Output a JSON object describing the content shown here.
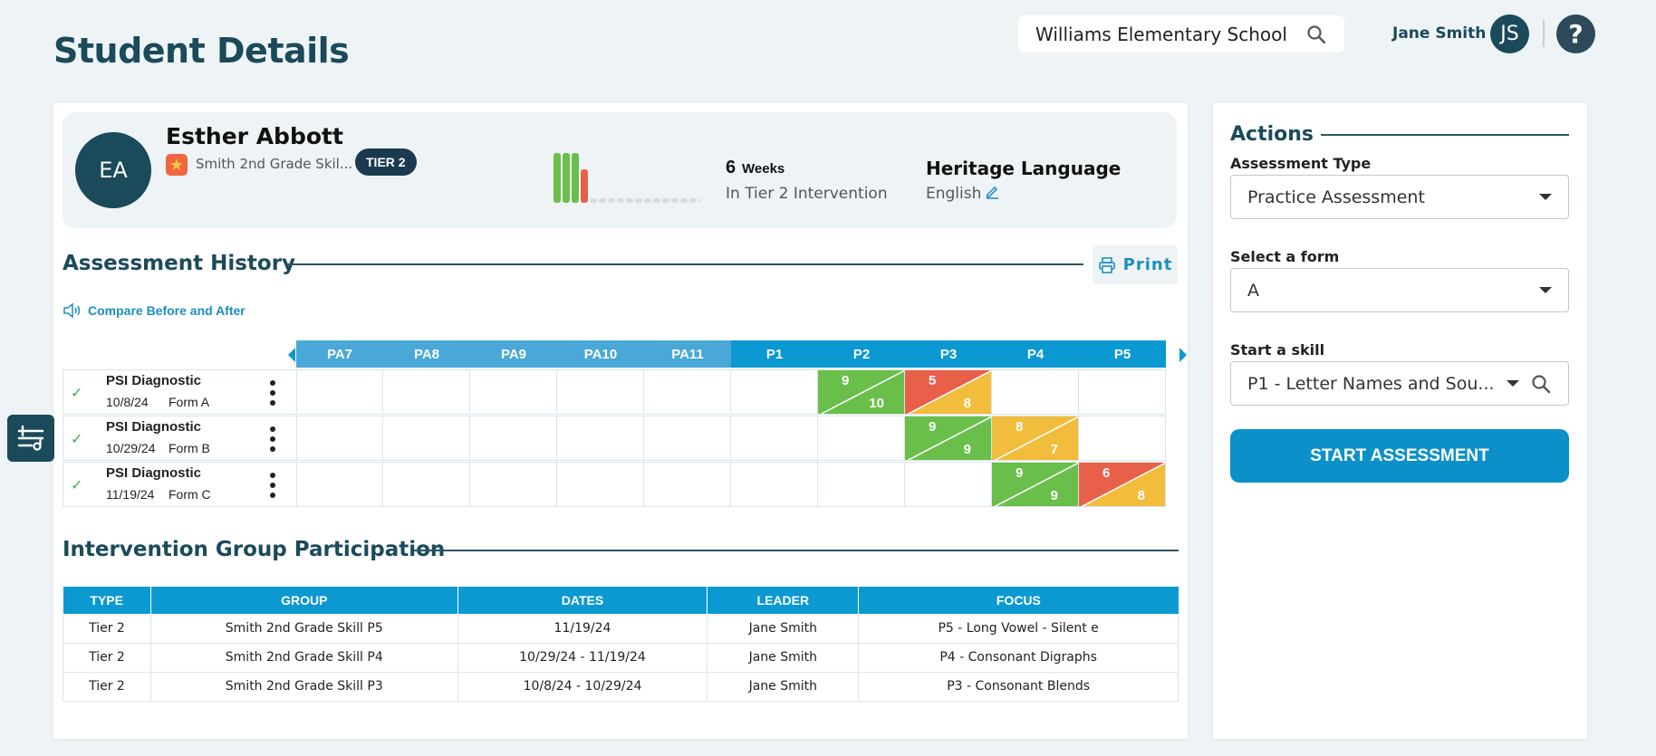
{
  "page": {
    "title": "Student Details"
  },
  "header": {
    "school": "Williams Elementary School",
    "user_name": "Jane Smith",
    "user_initials": "JS",
    "help": "?"
  },
  "student": {
    "initials": "EA",
    "name": "Esther Abbott",
    "group": "Smith 2nd Grade Skil...",
    "tier": "TIER 2",
    "weeks": {
      "count": "6",
      "unit": "Weeks",
      "desc": "In Tier 2 Intervention",
      "bars_green": 3,
      "bars_red": 1,
      "bars_empty": 13
    },
    "heritage": {
      "label": "Heritage Language",
      "value": "English"
    }
  },
  "assessment_history": {
    "title": "Assessment History",
    "print_label": "Print",
    "compare_label": "Compare Before and After",
    "columns": [
      "PA7",
      "PA8",
      "PA9",
      "PA10",
      "PA11",
      "P1",
      "P2",
      "P3",
      "P4",
      "P5"
    ],
    "rows": [
      {
        "name": "PSI Diagnostic",
        "date": "10/8/24",
        "form": "Form A",
        "cells": [
          null,
          null,
          null,
          null,
          null,
          null,
          {
            "top": "9",
            "bottom": "10",
            "tc": "#6abf4b",
            "bc": "#6abf4b"
          },
          {
            "top": "5",
            "bottom": "8",
            "tc": "#e8604a",
            "bc": "#f2bc3c"
          },
          null,
          null
        ]
      },
      {
        "name": "PSI Diagnostic",
        "date": "10/29/24",
        "form": "Form B",
        "cells": [
          null,
          null,
          null,
          null,
          null,
          null,
          null,
          {
            "top": "9",
            "bottom": "9",
            "tc": "#6abf4b",
            "bc": "#6abf4b"
          },
          {
            "top": "8",
            "bottom": "7",
            "tc": "#f2bc3c",
            "bc": "#f2bc3c"
          },
          null
        ]
      },
      {
        "name": "PSI Diagnostic",
        "date": "11/19/24",
        "form": "Form C",
        "cells": [
          null,
          null,
          null,
          null,
          null,
          null,
          null,
          null,
          {
            "top": "9",
            "bottom": "9",
            "tc": "#6abf4b",
            "bc": "#6abf4b"
          },
          {
            "top": "6",
            "bottom": "8",
            "tc": "#e8604a",
            "bc": "#f2bc3c"
          }
        ]
      }
    ]
  },
  "intervention": {
    "title": "Intervention Group Participation",
    "headers": [
      "TYPE",
      "GROUP",
      "DATES",
      "LEADER",
      "FOCUS"
    ],
    "rows": [
      [
        "Tier 2",
        "Smith 2nd Grade Skill P5",
        "11/19/24",
        "Jane Smith",
        "P5 - Long Vowel - Silent e"
      ],
      [
        "Tier 2",
        "Smith 2nd Grade Skill P4",
        "10/29/24 - 11/19/24",
        "Jane Smith",
        "P4 - Consonant Digraphs"
      ],
      [
        "Tier 2",
        "Smith 2nd Grade Skill P3",
        "10/8/24 - 10/29/24",
        "Jane Smith",
        "P3 - Consonant Blends"
      ]
    ]
  },
  "actions": {
    "title": "Actions",
    "assessment_type_label": "Assessment Type",
    "assessment_type_value": "Practice Assessment",
    "form_label": "Select a form",
    "form_value": "A",
    "skill_label": "Start a skill",
    "skill_value": "P1 - Letter Names and Sou...",
    "start_label": "START ASSESSMENT"
  },
  "colors": {
    "brand_dark": "#1b4a5a",
    "accent": "#0c99d1",
    "green": "#6abf4b",
    "red": "#e8604a",
    "yellow": "#f2bc3c"
  }
}
